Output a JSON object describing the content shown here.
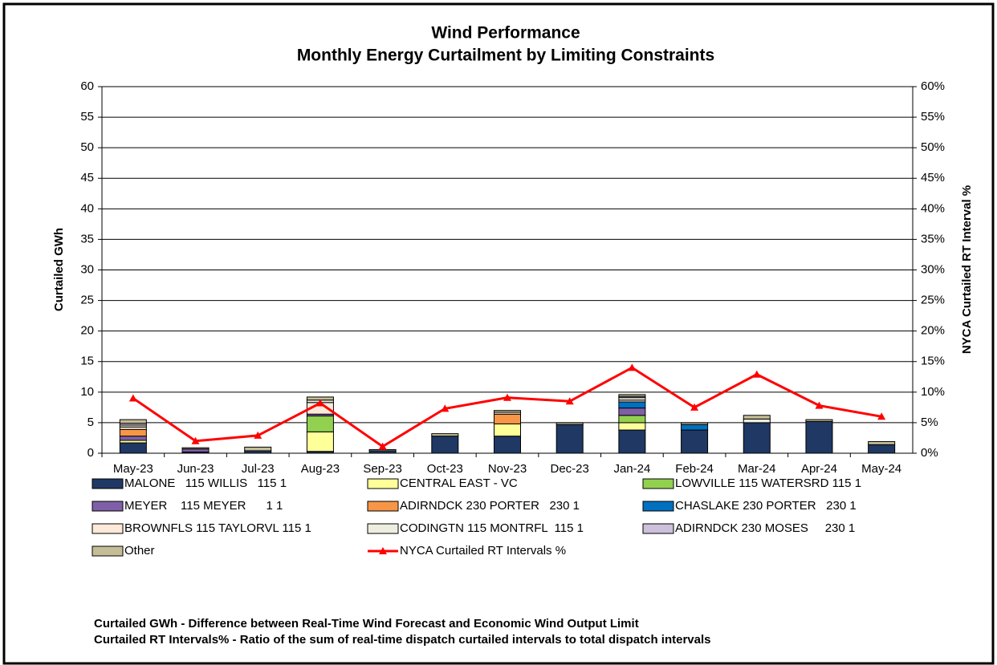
{
  "chart_data": {
    "type": "stacked_bar_line",
    "title": "Wind Performance",
    "subtitle": "Monthly Energy Curtailment by Limiting Constraints",
    "y_label": "Curtailed GWh",
    "y2_label": "NYCA Curtailed RT Interval %",
    "categories": [
      "May-23",
      "Jun-23",
      "Jul-23",
      "Aug-23",
      "Sep-23",
      "Oct-23",
      "Nov-23",
      "Dec-23",
      "Jan-24",
      "Feb-24",
      "Mar-24",
      "Apr-24",
      "May-24"
    ],
    "ylim": [
      0,
      60
    ],
    "yticks": [
      0,
      5,
      10,
      15,
      20,
      25,
      30,
      35,
      40,
      45,
      50,
      55,
      60
    ],
    "y2lim": [
      0,
      60
    ],
    "y2ticks": [
      {
        "value": 0,
        "label": "0%"
      },
      {
        "value": 5,
        "label": "5%"
      },
      {
        "value": 10,
        "label": "10%"
      },
      {
        "value": 15,
        "label": "15%"
      },
      {
        "value": 20,
        "label": "20%"
      },
      {
        "value": 25,
        "label": "25%"
      },
      {
        "value": 30,
        "label": "30%"
      },
      {
        "value": 35,
        "label": "35%"
      },
      {
        "value": 40,
        "label": "40%"
      },
      {
        "value": 45,
        "label": "45%"
      },
      {
        "value": 50,
        "label": "50%"
      },
      {
        "value": 55,
        "label": "55%"
      },
      {
        "value": 60,
        "label": "60%"
      }
    ],
    "grid": true,
    "series": [
      {
        "name": "MALONE   115 WILLIS   115 1",
        "color": "#1f3864",
        "values": [
          1.7,
          0.2,
          0.4,
          0.3,
          0.4,
          2.8,
          2.8,
          4.7,
          3.8,
          3.8,
          5.0,
          5.2,
          1.4
        ]
      },
      {
        "name": "CENTRAL EAST - VC",
        "color": "#ffff99",
        "values": [
          0.4,
          0,
          0,
          3.2,
          0,
          0,
          2.0,
          0,
          1.2,
          0,
          0,
          0,
          0
        ]
      },
      {
        "name": "LOWVILLE 115 WATERSRD 115 1",
        "color": "#92d050",
        "values": [
          0,
          0,
          0,
          2.6,
          0,
          0,
          0,
          0,
          1.2,
          0,
          0,
          0,
          0
        ]
      },
      {
        "name": "MEYER    115 MEYER      1 1",
        "color": "#7f5fa8",
        "values": [
          0.7,
          0.5,
          0,
          0.3,
          0,
          0,
          0,
          0,
          1.2,
          0,
          0,
          0,
          0
        ]
      },
      {
        "name": "ADIRNDCK 230 PORTER   230 1",
        "color": "#f79646",
        "values": [
          1.1,
          0,
          0,
          0,
          0,
          0,
          1.6,
          0,
          0,
          0,
          0,
          0,
          0
        ]
      },
      {
        "name": "CHASLAKE 230 PORTER   230 1",
        "color": "#0070c0",
        "values": [
          0,
          0,
          0,
          0,
          0,
          0,
          0,
          0,
          1.0,
          0.9,
          0,
          0,
          0
        ]
      },
      {
        "name": "BROWNFLS 115 TAYLORVL 115 1",
        "color": "#fde9d9",
        "values": [
          0.4,
          0,
          0,
          1.9,
          0,
          0,
          0.3,
          0,
          0.3,
          0,
          0,
          0,
          0
        ]
      },
      {
        "name": "CODINGTN 115 MONTRFL  115 1",
        "color": "#eeeee0",
        "values": [
          0.3,
          0,
          0,
          0.4,
          0,
          0,
          0,
          0,
          0.4,
          0,
          0.6,
          0,
          0
        ]
      },
      {
        "name": "ADIRNDCK 230 MOSES     230 1",
        "color": "#ccc0da",
        "values": [
          0.3,
          0,
          0,
          0,
          0,
          0,
          0,
          0,
          0.2,
          0,
          0,
          0,
          0
        ]
      },
      {
        "name": "Other",
        "color": "#c4bd97",
        "values": [
          0.6,
          0.2,
          0.6,
          0.5,
          0.2,
          0.4,
          0.3,
          0.3,
          0.3,
          0.3,
          0.6,
          0.3,
          0.5
        ]
      },
      {
        "name": "NYCA Curtailed RT Intervals %",
        "color": "#ff0000",
        "axis": "y2",
        "type": "line",
        "values": [
          9.0,
          2.0,
          2.9,
          8.2,
          1.1,
          7.3,
          9.1,
          8.5,
          14.0,
          7.5,
          12.9,
          7.8,
          6.0
        ]
      }
    ],
    "notes": [
      "Curtailed GWh - Difference between Real-Time Wind Forecast and Economic Wind Output Limit",
      "Curtailed RT Intervals% - Ratio of the sum of real-time dispatch curtailed intervals to total dispatch intervals"
    ]
  }
}
